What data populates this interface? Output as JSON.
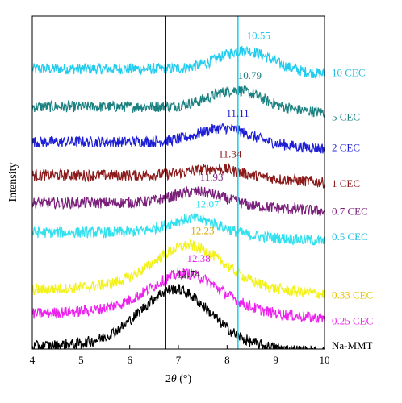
{
  "chart_data": {
    "type": "line",
    "xlabel_prefix": "2",
    "xlabel_symbol": "θ",
    "xlabel_unit": " (°)",
    "ylabel": "Intensity",
    "xlim": [
      4,
      10
    ],
    "x_ticks": [
      "4",
      "5",
      "6",
      "7",
      "8",
      "9",
      "10"
    ],
    "reference_lines": [
      {
        "x": 6.74,
        "color": "#000000"
      },
      {
        "x": 8.22,
        "color": "#22d3ee"
      }
    ],
    "series": [
      {
        "name": "10 CEC",
        "color": "#22ccee",
        "peak_x": 8.37,
        "peak_label": "10.55",
        "base": 30.3,
        "peak_height": 2.0
      },
      {
        "name": "5 CEC",
        "color": "#1a8080",
        "peak_x": 8.19,
        "peak_label": "10.79",
        "base": 26.2,
        "peak_height": 1.8
      },
      {
        "name": "2 CEC",
        "color": "#1f1fd6",
        "peak_x": 7.95,
        "peak_label": "11.11",
        "base": 22.4,
        "peak_height": 1.5
      },
      {
        "name": "1 CEC",
        "color": "#8b1a1a",
        "peak_x": 7.79,
        "peak_label": "11.34",
        "base": 18.8,
        "peak_height": 0.7
      },
      {
        "name": "0.7 CEC",
        "color": "#7a1f7a",
        "peak_x": 7.41,
        "peak_label": "11.93",
        "base": 15.8,
        "peak_height": 1.2
      },
      {
        "name": "0.5 CEC",
        "color": "#33e0ee",
        "peak_x": 7.32,
        "peak_label": "12.07",
        "base": 12.6,
        "peak_height": 1.5
      },
      {
        "name": "0.33 CEC",
        "color": "#f2f21a",
        "peak_x": 7.22,
        "peak_label": "12.23",
        "base": 7.2,
        "peak_height": 4.0
      },
      {
        "name": "0.25 CEC",
        "color": "#ee22ee",
        "peak_x": 7.14,
        "peak_label": "12.38",
        "base": 4.6,
        "peak_height": 3.6
      },
      {
        "name": "Na-MMT",
        "color": "#000000",
        "peak_x": 6.93,
        "peak_label": "12.74",
        "base": 1.0,
        "peak_height": 5.5
      }
    ]
  }
}
